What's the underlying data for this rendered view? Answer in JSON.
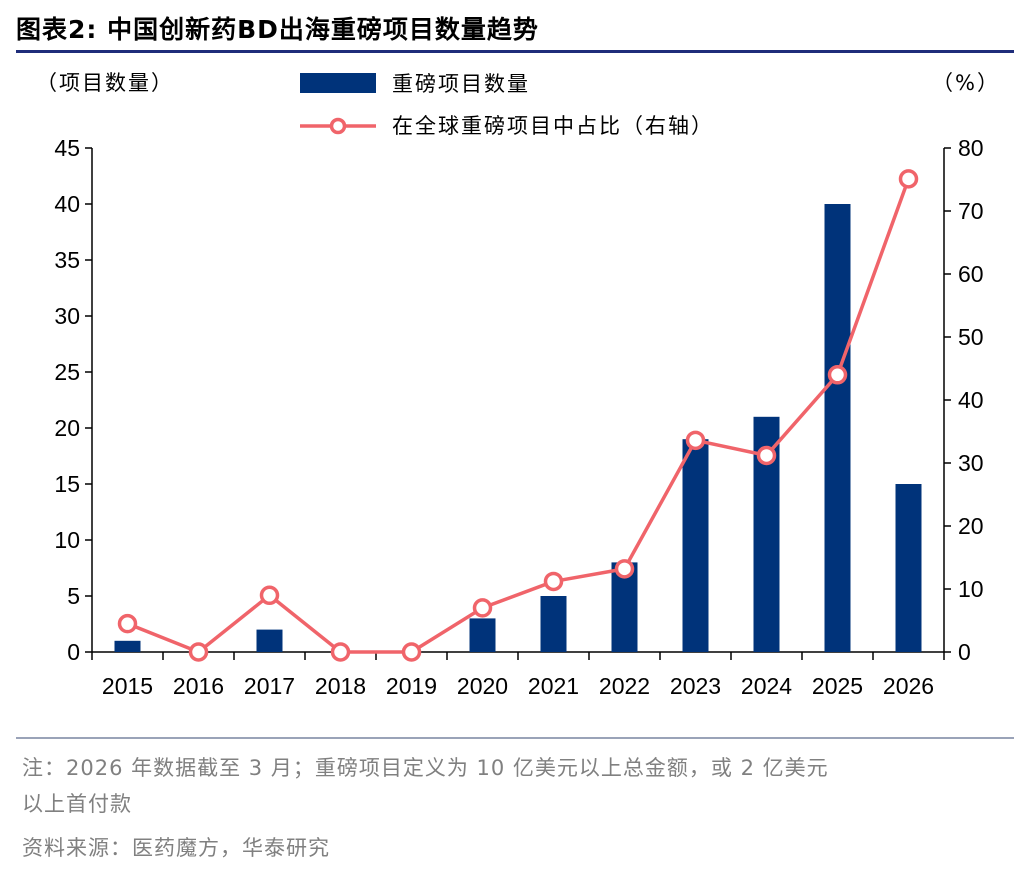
{
  "header": {
    "title": "图表2:   中国创新药BD出海重磅项目数量趋势"
  },
  "footer": {
    "note_line1": "注：2026 年数据截至 3 月；重磅项目定义为 10 亿美元以上总金额，或 2 亿美元",
    "note_line2": "以上首付款",
    "source": "资料来源：医药魔方，华泰研究"
  },
  "colors": {
    "bar": "#00337a",
    "line": "#f0646a",
    "rule": "#1f2d7a"
  },
  "chart_data": {
    "type": "bar",
    "categories": [
      "2015",
      "2016",
      "2017",
      "2018",
      "2019",
      "2020",
      "2021",
      "2022",
      "2023",
      "2024",
      "2025",
      "2026"
    ],
    "series": [
      {
        "name": "重磅项目数量",
        "type": "bar",
        "axis": "left",
        "values": [
          1,
          0,
          2,
          0,
          0,
          3,
          5,
          8,
          19,
          21,
          40,
          15
        ]
      },
      {
        "name": "在全球重磅项目中占比（右轴）",
        "type": "line",
        "axis": "right",
        "values": [
          4.5,
          0,
          9,
          0,
          0,
          7,
          11.2,
          13.2,
          33.6,
          31.2,
          44,
          75.1
        ]
      }
    ],
    "left_axis": {
      "label": "（项目数量）",
      "min": 0,
      "max": 45,
      "ticks": [
        "0",
        "5",
        "10",
        "15",
        "20",
        "25",
        "30",
        "35",
        "40",
        "45"
      ]
    },
    "right_axis": {
      "label": "（%）",
      "min": 0,
      "max": 80,
      "ticks": [
        "0",
        "10",
        "20",
        "30",
        "40",
        "50",
        "60",
        "70",
        "80"
      ]
    },
    "legend": {
      "position": "top-center"
    }
  }
}
